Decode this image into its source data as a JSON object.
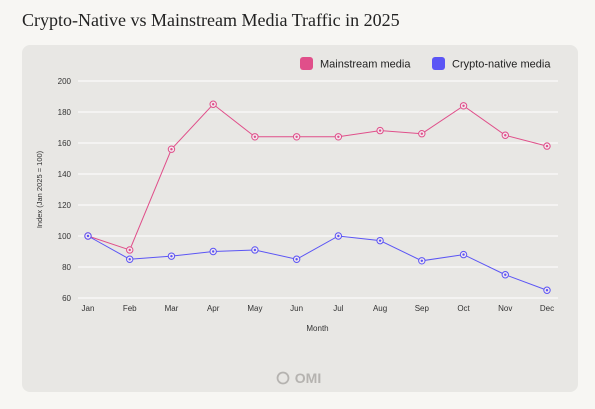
{
  "chart_data": {
    "type": "line",
    "title": "Crypto-Native vs Mainstream Media Traffic in 2025",
    "xlabel": "Month",
    "ylabel": "Index (Jan 2025 = 100)",
    "categories": [
      "Jan",
      "Feb",
      "Mar",
      "Apr",
      "May",
      "Jun",
      "Jul",
      "Aug",
      "Sep",
      "Oct",
      "Nov",
      "Dec"
    ],
    "ylim": [
      60,
      200
    ],
    "yticks": [
      60,
      80,
      100,
      120,
      140,
      160,
      180,
      200
    ],
    "grid": true,
    "legend_position": "top-right",
    "series": [
      {
        "name": "Mainstream media",
        "color": "#e04f8a",
        "values": [
          100,
          91,
          156,
          185,
          164,
          164,
          164,
          168,
          166,
          184,
          165,
          158
        ]
      },
      {
        "name": "Crypto-native media",
        "color": "#5b55f5",
        "values": [
          100,
          85,
          87,
          90,
          91,
          85,
          100,
          97,
          84,
          88,
          75,
          65
        ]
      }
    ]
  },
  "watermark": "OMI"
}
